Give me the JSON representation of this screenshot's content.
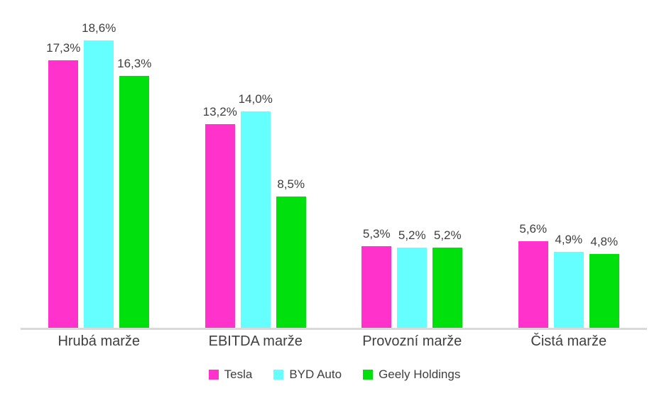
{
  "chart_data": {
    "type": "bar",
    "title": "",
    "xlabel": "",
    "ylabel": "",
    "ylim": [
      0,
      20
    ],
    "grid": false,
    "legend_position": "bottom",
    "decimal_separator": ",",
    "axis_line_color": "#d9d9d9",
    "label_text_color": "#3f3f3f",
    "categories": [
      "Hrubá marže",
      "EBITDA marže",
      "Provozní marže",
      "Čistá marže"
    ],
    "series": [
      {
        "name": "Tesla",
        "color": "#FF33CC",
        "values": [
          17.3,
          13.2,
          5.3,
          5.6
        ],
        "labels": [
          "17,3%",
          "13,2%",
          "5,3%",
          "5,6%"
        ]
      },
      {
        "name": "BYD Auto",
        "color": "#66FFFF",
        "values": [
          18.6,
          14.0,
          5.2,
          4.9
        ],
        "labels": [
          "18,6%",
          "14,0%",
          "5,2%",
          "4,9%"
        ]
      },
      {
        "name": "Geely Holdings",
        "color": "#00E00C",
        "values": [
          16.3,
          8.5,
          5.2,
          4.8
        ],
        "labels": [
          "16,3%",
          "8,5%",
          "5,2%",
          "4,8%"
        ]
      }
    ]
  }
}
